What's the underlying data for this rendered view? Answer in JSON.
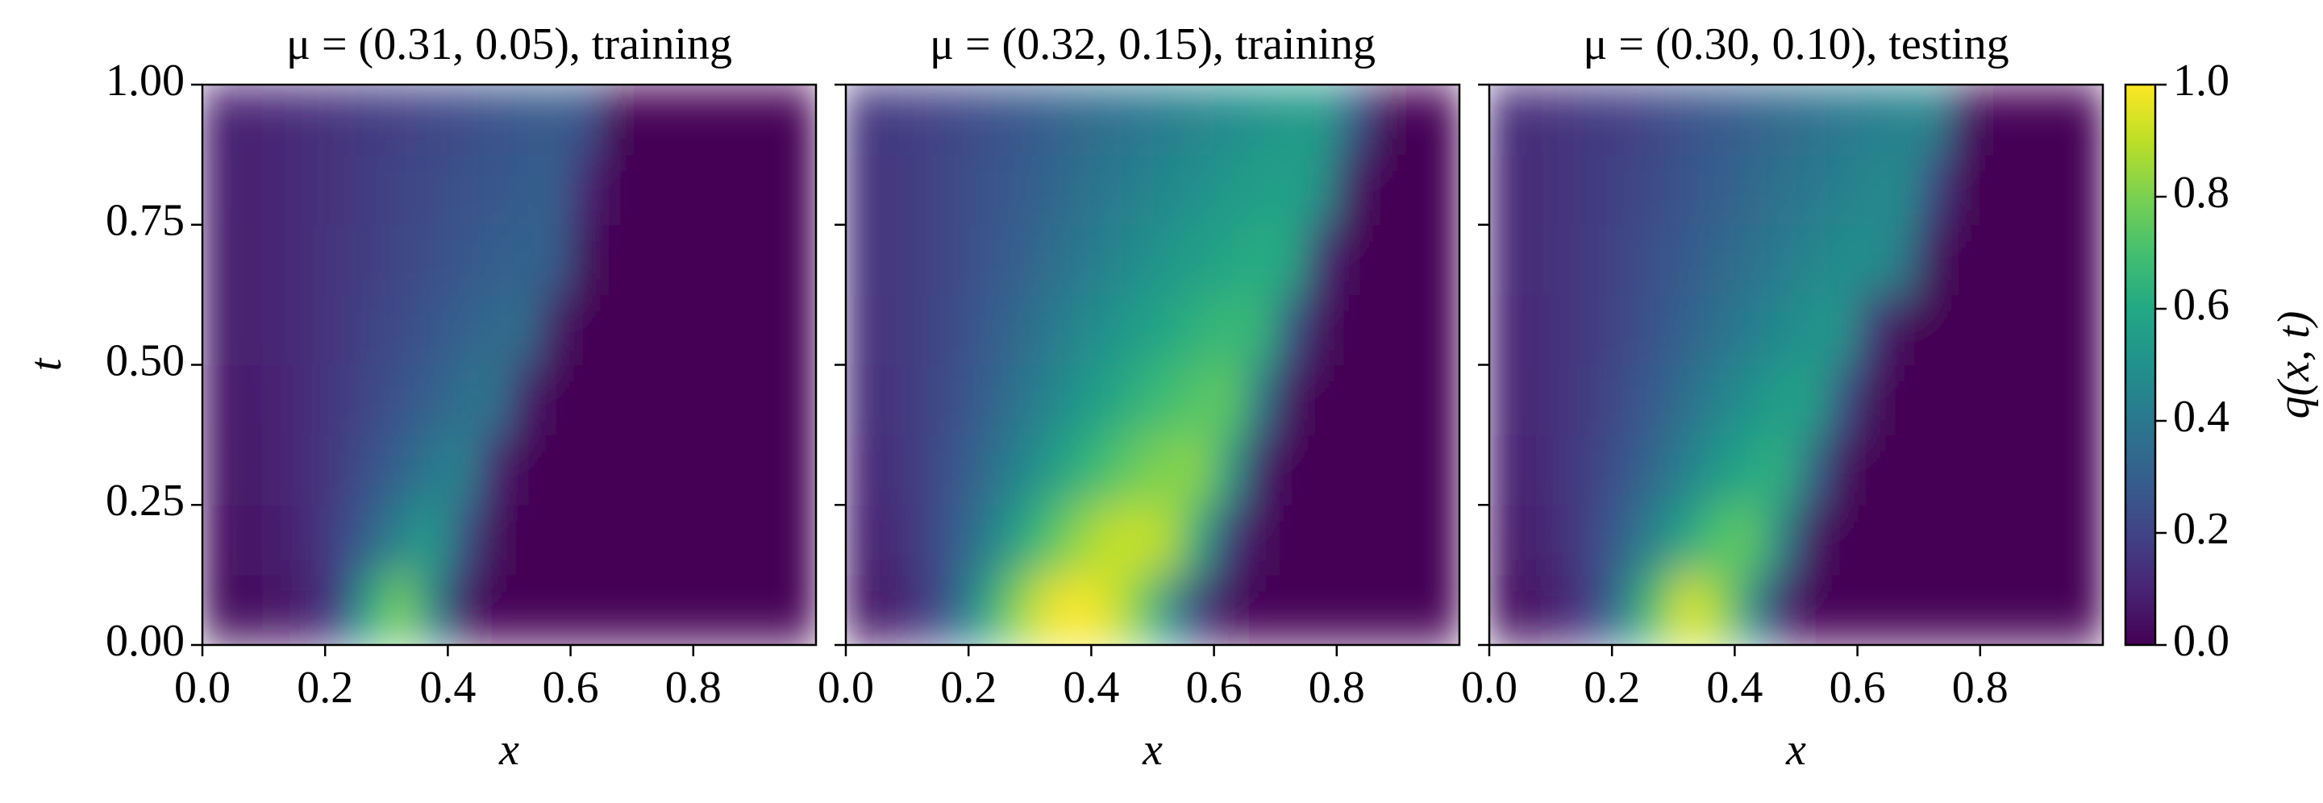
{
  "chart_data": [
    {
      "type": "heatmap",
      "title": "μ = (0.31, 0.05), training",
      "xlabel": "x",
      "ylabel": "t",
      "xlim": [
        0,
        1
      ],
      "ylim": [
        0,
        1
      ],
      "xticks": [
        {
          "value": 0,
          "label": "0.0"
        },
        0.2,
        0.4,
        0.6,
        0.8
      ],
      "yticks": [
        {
          "value": 0,
          "label": "0.00"
        },
        0.25,
        {
          "value": 0.5,
          "label": "0.50"
        },
        0.75,
        {
          "value": 1,
          "label": "1.00"
        }
      ],
      "show_ytick_labels": true,
      "x": [
        0.025,
        0.075,
        0.125,
        0.175,
        0.225,
        0.275,
        0.325,
        0.375,
        0.425,
        0.475,
        0.525,
        0.575,
        0.625,
        0.675,
        0.725,
        0.775,
        0.825,
        0.875,
        0.925,
        0.975
      ],
      "y": [
        0.0625,
        0.1875,
        0.3125,
        0.4375,
        0.5625,
        0.6875,
        0.8125,
        0.9375
      ],
      "z": [
        [
          0.02,
          0.03,
          0.05,
          0.08,
          0.2,
          0.6,
          0.8,
          0.45,
          0.05,
          0,
          0,
          0,
          0,
          0,
          0,
          0,
          0,
          0,
          0,
          0
        ],
        [
          0.04,
          0.06,
          0.08,
          0.12,
          0.2,
          0.32,
          0.45,
          0.55,
          0.25,
          0.02,
          0,
          0,
          0,
          0,
          0,
          0,
          0,
          0,
          0,
          0
        ],
        [
          0.05,
          0.07,
          0.1,
          0.13,
          0.18,
          0.25,
          0.32,
          0.4,
          0.45,
          0.1,
          0,
          0,
          0,
          0,
          0,
          0,
          0,
          0,
          0,
          0
        ],
        [
          0.06,
          0.08,
          0.1,
          0.13,
          0.17,
          0.21,
          0.26,
          0.31,
          0.36,
          0.4,
          0.08,
          0,
          0,
          0,
          0,
          0,
          0,
          0,
          0,
          0
        ],
        [
          0.07,
          0.09,
          0.11,
          0.13,
          0.16,
          0.2,
          0.23,
          0.27,
          0.31,
          0.34,
          0.36,
          0.05,
          0,
          0,
          0,
          0,
          0,
          0,
          0,
          0
        ],
        [
          0.07,
          0.09,
          0.11,
          0.13,
          0.16,
          0.18,
          0.21,
          0.24,
          0.27,
          0.3,
          0.32,
          0.3,
          0.02,
          0,
          0,
          0,
          0,
          0,
          0,
          0
        ],
        [
          0.08,
          0.09,
          0.11,
          0.13,
          0.15,
          0.18,
          0.2,
          0.23,
          0.25,
          0.27,
          0.29,
          0.31,
          0.1,
          0,
          0,
          0,
          0,
          0,
          0,
          0
        ],
        [
          0.08,
          0.1,
          0.11,
          0.13,
          0.15,
          0.17,
          0.19,
          0.21,
          0.23,
          0.25,
          0.27,
          0.29,
          0.25,
          0.01,
          0,
          0,
          0,
          0,
          0,
          0
        ]
      ]
    },
    {
      "type": "heatmap",
      "title": "μ = (0.32, 0.15), training",
      "xlabel": "x",
      "xlim": [
        0,
        1
      ],
      "ylim": [
        0,
        1
      ],
      "xticks": [
        {
          "value": 0,
          "label": "0.0"
        },
        0.2,
        0.4,
        0.6,
        0.8
      ],
      "yticks": [
        0,
        0.25,
        0.5,
        0.75,
        1
      ],
      "show_ytick_labels": false,
      "x": [
        0.025,
        0.075,
        0.125,
        0.175,
        0.225,
        0.275,
        0.325,
        0.375,
        0.425,
        0.475,
        0.525,
        0.575,
        0.625,
        0.675,
        0.725,
        0.775,
        0.825,
        0.875,
        0.925,
        0.975
      ],
      "y": [
        0.0625,
        0.1875,
        0.3125,
        0.4375,
        0.5625,
        0.6875,
        0.8125,
        0.9375
      ],
      "z": [
        [
          0.05,
          0.08,
          0.15,
          0.3,
          0.55,
          0.8,
          0.95,
          1.0,
          0.95,
          0.8,
          0.5,
          0.15,
          0.02,
          0,
          0,
          0,
          0,
          0,
          0,
          0
        ],
        [
          0.08,
          0.12,
          0.18,
          0.28,
          0.4,
          0.55,
          0.7,
          0.82,
          0.9,
          0.92,
          0.88,
          0.6,
          0.15,
          0.02,
          0,
          0,
          0,
          0,
          0,
          0
        ],
        [
          0.1,
          0.14,
          0.19,
          0.26,
          0.34,
          0.43,
          0.52,
          0.62,
          0.7,
          0.77,
          0.81,
          0.82,
          0.55,
          0.08,
          0,
          0,
          0,
          0,
          0,
          0
        ],
        [
          0.12,
          0.15,
          0.19,
          0.24,
          0.3,
          0.37,
          0.44,
          0.51,
          0.58,
          0.64,
          0.69,
          0.73,
          0.75,
          0.4,
          0.04,
          0,
          0,
          0,
          0,
          0
        ],
        [
          0.13,
          0.16,
          0.19,
          0.23,
          0.28,
          0.33,
          0.39,
          0.45,
          0.5,
          0.55,
          0.6,
          0.64,
          0.67,
          0.66,
          0.25,
          0.02,
          0,
          0,
          0,
          0
        ],
        [
          0.14,
          0.16,
          0.19,
          0.22,
          0.26,
          0.3,
          0.35,
          0.39,
          0.44,
          0.48,
          0.52,
          0.56,
          0.59,
          0.62,
          0.6,
          0.12,
          0,
          0,
          0,
          0
        ],
        [
          0.14,
          0.16,
          0.19,
          0.22,
          0.25,
          0.28,
          0.32,
          0.36,
          0.4,
          0.43,
          0.47,
          0.5,
          0.53,
          0.56,
          0.58,
          0.5,
          0.05,
          0,
          0,
          0
        ],
        [
          0.15,
          0.17,
          0.19,
          0.21,
          0.24,
          0.27,
          0.3,
          0.33,
          0.36,
          0.39,
          0.42,
          0.45,
          0.48,
          0.51,
          0.53,
          0.55,
          0.3,
          0.02,
          0,
          0
        ]
      ]
    },
    {
      "type": "heatmap",
      "title": "μ = (0.30, 0.10), testing",
      "xlabel": "x",
      "xlim": [
        0,
        1
      ],
      "ylim": [
        0,
        1
      ],
      "xticks": [
        {
          "value": 0,
          "label": "0.0"
        },
        0.2,
        0.4,
        0.6,
        0.8
      ],
      "yticks": [
        0,
        0.25,
        0.5,
        0.75,
        1
      ],
      "show_ytick_labels": false,
      "x": [
        0.025,
        0.075,
        0.125,
        0.175,
        0.225,
        0.275,
        0.325,
        0.375,
        0.425,
        0.475,
        0.525,
        0.575,
        0.625,
        0.675,
        0.725,
        0.775,
        0.825,
        0.875,
        0.925,
        0.975
      ],
      "y": [
        0.0625,
        0.1875,
        0.3125,
        0.4375,
        0.5625,
        0.6875,
        0.8125,
        0.9375
      ],
      "z": [
        [
          0.03,
          0.05,
          0.1,
          0.2,
          0.45,
          0.75,
          0.95,
          0.85,
          0.5,
          0.1,
          0,
          0,
          0,
          0,
          0,
          0,
          0,
          0,
          0,
          0
        ],
        [
          0.06,
          0.09,
          0.14,
          0.22,
          0.33,
          0.46,
          0.6,
          0.72,
          0.75,
          0.45,
          0.05,
          0,
          0,
          0,
          0,
          0,
          0,
          0,
          0,
          0
        ],
        [
          0.08,
          0.11,
          0.15,
          0.2,
          0.27,
          0.35,
          0.44,
          0.53,
          0.6,
          0.64,
          0.35,
          0.03,
          0,
          0,
          0,
          0,
          0,
          0,
          0,
          0
        ],
        [
          0.09,
          0.12,
          0.15,
          0.19,
          0.24,
          0.3,
          0.37,
          0.44,
          0.5,
          0.55,
          0.58,
          0.25,
          0.02,
          0,
          0,
          0,
          0,
          0,
          0,
          0
        ],
        [
          0.1,
          0.12,
          0.15,
          0.18,
          0.22,
          0.27,
          0.32,
          0.37,
          0.42,
          0.47,
          0.51,
          0.53,
          0.15,
          0,
          0,
          0,
          0,
          0,
          0,
          0
        ],
        [
          0.11,
          0.13,
          0.15,
          0.18,
          0.21,
          0.25,
          0.29,
          0.33,
          0.37,
          0.41,
          0.45,
          0.48,
          0.5,
          0.4,
          0.02,
          0,
          0,
          0,
          0,
          0
        ],
        [
          0.11,
          0.13,
          0.15,
          0.17,
          0.2,
          0.23,
          0.27,
          0.3,
          0.34,
          0.37,
          0.4,
          0.43,
          0.46,
          0.48,
          0.2,
          0,
          0,
          0,
          0,
          0
        ],
        [
          0.12,
          0.13,
          0.15,
          0.17,
          0.19,
          0.22,
          0.25,
          0.28,
          0.31,
          0.34,
          0.37,
          0.4,
          0.42,
          0.44,
          0.45,
          0.05,
          0,
          0,
          0,
          0
        ]
      ]
    }
  ],
  "colorbar": {
    "cmap": "viridis",
    "label": "q(x, t)",
    "lim": [
      0,
      1
    ],
    "ticks": [
      {
        "value": 0,
        "label": "0.0"
      },
      0.2,
      0.4,
      0.6,
      0.8,
      {
        "value": 1,
        "label": "1.0"
      }
    ]
  }
}
